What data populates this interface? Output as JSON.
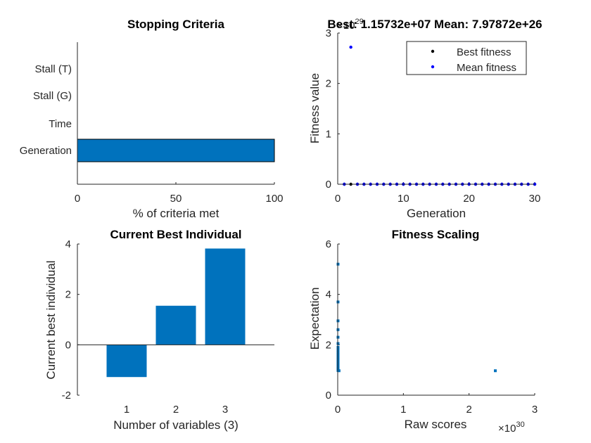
{
  "figure": {
    "background": "#ffffff"
  },
  "chart_data": [
    {
      "id": "stopping",
      "type": "bar",
      "orientation": "horizontal",
      "title": "Stopping Criteria",
      "xlabel": "% of criteria met",
      "ylabel": "",
      "categories": [
        "Stall (T)",
        "Stall (G)",
        "Time",
        "Generation"
      ],
      "values": [
        0,
        0,
        0,
        100
      ],
      "xlim": [
        0,
        100
      ],
      "xticks": [
        "0",
        "50",
        "100"
      ],
      "bar_color": "#0072bd"
    },
    {
      "id": "fitness",
      "type": "scatter",
      "title": "Best: 1.15732e+07 Mean: 7.97872e+26",
      "xlabel": "Generation",
      "ylabel": "Fitness value",
      "exponent_label": "×10",
      "exponent_value": "29",
      "xlim": [
        0,
        30
      ],
      "ylim": [
        0,
        3
      ],
      "xticks": [
        "0",
        "10",
        "20",
        "30"
      ],
      "yticks": [
        "0",
        "1",
        "2",
        "3"
      ],
      "legend": {
        "placement": "top-right",
        "entries": [
          "Best fitness",
          "Mean fitness"
        ]
      },
      "series": [
        {
          "name": "Best fitness",
          "color": "#000000",
          "x": [
            1,
            2,
            3,
            4,
            5,
            6,
            7,
            8,
            9,
            10,
            11,
            12,
            13,
            14,
            15,
            16,
            17,
            18,
            19,
            20,
            21,
            22,
            23,
            24,
            25,
            26,
            27,
            28,
            29,
            30
          ],
          "y": [
            0,
            0,
            0,
            0,
            0,
            0,
            0,
            0,
            0,
            0,
            0,
            0,
            0,
            0,
            0,
            0,
            0,
            0,
            0,
            0,
            0,
            0,
            0,
            0,
            0,
            0,
            0,
            0,
            0,
            0
          ]
        },
        {
          "name": "Mean fitness",
          "color": "#0000ff",
          "x": [
            1,
            2,
            3,
            4,
            5,
            6,
            7,
            8,
            9,
            10,
            11,
            12,
            13,
            14,
            15,
            16,
            17,
            18,
            19,
            20,
            21,
            22,
            23,
            24,
            25,
            26,
            27,
            28,
            29,
            30
          ],
          "y": [
            0,
            2.72,
            0,
            0,
            0,
            0,
            0,
            0,
            0,
            0,
            0,
            0,
            0,
            0,
            0,
            0,
            0,
            0,
            0,
            0,
            0,
            0,
            0,
            0,
            0,
            0,
            0,
            0,
            0,
            0
          ]
        }
      ]
    },
    {
      "id": "best-individual",
      "type": "bar",
      "title": "Current Best Individual",
      "xlabel": "Number of variables (3)",
      "ylabel": "Current best individual",
      "categories": [
        "1",
        "2",
        "3"
      ],
      "values": [
        -1.28,
        1.55,
        3.82
      ],
      "ylim": [
        -2,
        4
      ],
      "yticks": [
        "-2",
        "0",
        "2",
        "4"
      ],
      "bar_color": "#0072bd"
    },
    {
      "id": "scaling",
      "type": "scatter",
      "title": "Fitness Scaling",
      "xlabel": "Raw scores",
      "ylabel": "Expectation",
      "exponent_label": "×10",
      "exponent_value": "30",
      "xlim": [
        0,
        3
      ],
      "ylim": [
        0,
        6
      ],
      "xticks": [
        "0",
        "1",
        "2",
        "3"
      ],
      "yticks": [
        "0",
        "2",
        "4",
        "6"
      ],
      "marker_color": "#0072bd",
      "x": [
        0.005,
        0.005,
        0.005,
        0.005,
        0.005,
        0.005,
        0.005,
        0.005,
        0.005,
        0.005,
        0.005,
        0.005,
        0.005,
        0.005,
        0.005,
        0.005,
        0.005,
        0.005,
        0.005,
        0.005,
        0.005,
        0.005,
        0.02,
        2.4
      ],
      "y": [
        5.2,
        3.7,
        2.95,
        2.6,
        2.3,
        2.05,
        1.9,
        1.8,
        1.7,
        1.62,
        1.55,
        1.48,
        1.42,
        1.36,
        1.3,
        1.25,
        1.2,
        1.15,
        1.1,
        1.06,
        1.02,
        0.98,
        0.97,
        0.97
      ]
    }
  ]
}
